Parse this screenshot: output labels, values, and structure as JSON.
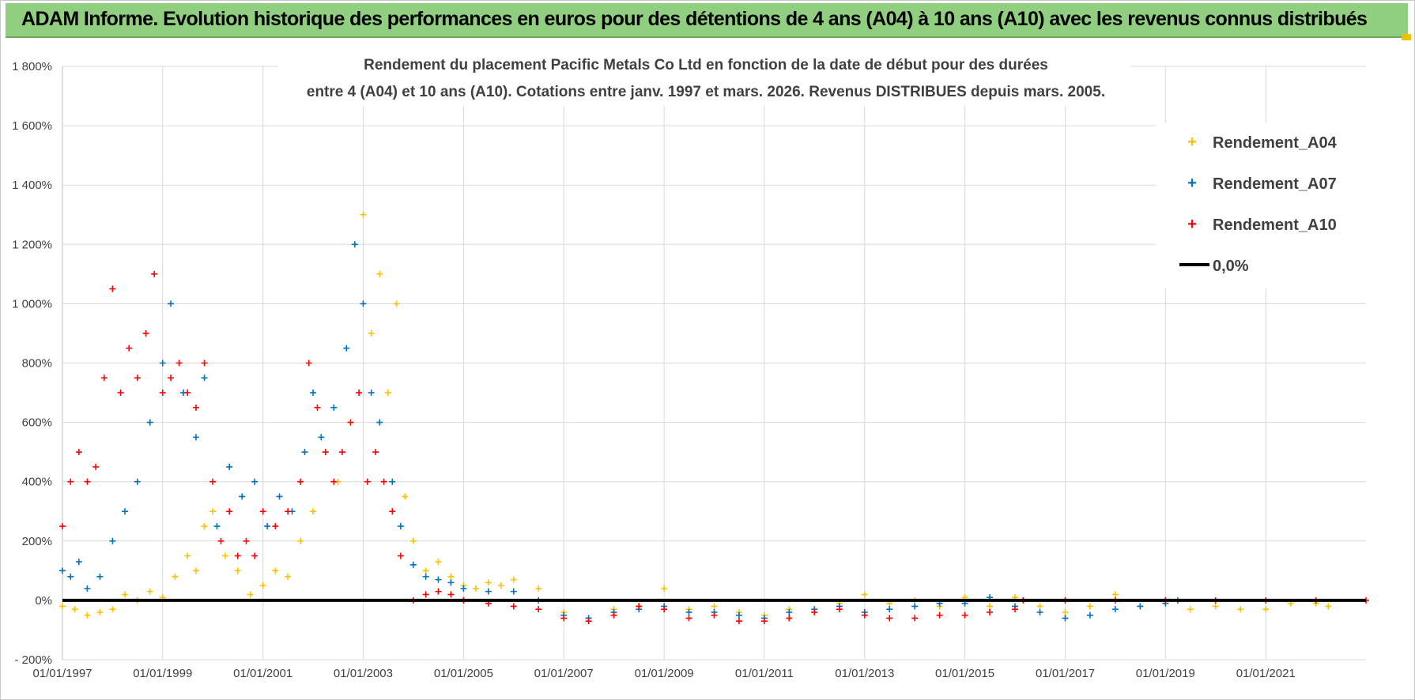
{
  "header": {
    "title": "ADAM Informe. Evolution historique des performances en euros pour des détentions de 4 ans (A04) à 10 ans (A10) avec les revenus connus distribués"
  },
  "colors": {
    "A04": "#ffc000",
    "A07": "#0070c0",
    "A10": "#ff0000",
    "zero": "#000000",
    "header_bg": "#8fcf7f",
    "grid": "#d9d9d9"
  },
  "chart_data": {
    "type": "scatter",
    "title_lines": [
      "Rendement du placement Pacific Metals Co Ltd en fonction de la date de début pour des durées",
      "entre 4 (A04) et 10 ans (A10).  Cotations entre janv. 1997 et mars. 2026. Revenus DISTRIBUES depuis mars. 2005."
    ],
    "xlabel": "",
    "ylabel": "",
    "ylim": [
      -200,
      1800
    ],
    "y_ticks": [
      -200,
      0,
      200,
      400,
      600,
      800,
      1000,
      1200,
      1400,
      1600,
      1800
    ],
    "y_tick_labels": [
      "- 200%",
      "0%",
      "200%",
      "400%",
      "600%",
      "800%",
      "1 000%",
      "1 200%",
      "1 400%",
      "1 600%",
      "1 800%"
    ],
    "x_range": [
      "1997-01-01",
      "2023-01-01"
    ],
    "x_ticks": [
      "1997-01-01",
      "1999-01-01",
      "2001-01-01",
      "2003-01-01",
      "2005-01-01",
      "2007-01-01",
      "2009-01-01",
      "2011-01-01",
      "2013-01-01",
      "2015-01-01",
      "2017-01-01",
      "2019-01-01",
      "2021-01-01"
    ],
    "x_tick_labels": [
      "01/01/1997",
      "01/01/1999",
      "01/01/2001",
      "01/01/2003",
      "01/01/2005",
      "01/01/2007",
      "01/01/2009",
      "01/01/2011",
      "01/01/2013",
      "01/01/2015",
      "01/01/2017",
      "01/01/2019",
      "01/01/2021"
    ],
    "grid": true,
    "legend_position": "top-right",
    "legend": [
      "Rendement_A04",
      "Rendement_A07",
      "Rendement_A10",
      "0,0%"
    ],
    "marker": "+",
    "series": [
      {
        "name": "Rendement_A04",
        "points": [
          [
            "1997-01-01",
            -20
          ],
          [
            "1997-04-01",
            -30
          ],
          [
            "1997-07-01",
            -50
          ],
          [
            "1997-10-01",
            -40
          ],
          [
            "1998-01-01",
            -30
          ],
          [
            "1998-04-01",
            20
          ],
          [
            "1998-07-01",
            0
          ],
          [
            "1998-10-01",
            30
          ],
          [
            "1999-01-01",
            10
          ],
          [
            "1999-04-01",
            80
          ],
          [
            "1999-07-01",
            150
          ],
          [
            "1999-09-01",
            100
          ],
          [
            "1999-11-01",
            250
          ],
          [
            "2000-01-01",
            300
          ],
          [
            "2000-04-01",
            150
          ],
          [
            "2000-07-01",
            100
          ],
          [
            "2000-10-01",
            20
          ],
          [
            "2001-01-01",
            50
          ],
          [
            "2001-04-01",
            100
          ],
          [
            "2001-07-01",
            80
          ],
          [
            "2001-10-01",
            200
          ],
          [
            "2002-01-01",
            300
          ],
          [
            "2002-04-01",
            500
          ],
          [
            "2002-07-01",
            400
          ],
          [
            "2002-10-01",
            600
          ],
          [
            "2003-01-01",
            1300
          ],
          [
            "2003-03-01",
            900
          ],
          [
            "2003-05-01",
            1100
          ],
          [
            "2003-07-01",
            700
          ],
          [
            "2003-09-01",
            1000
          ],
          [
            "2003-11-01",
            350
          ],
          [
            "2004-01-01",
            200
          ],
          [
            "2004-04-01",
            100
          ],
          [
            "2004-07-01",
            130
          ],
          [
            "2004-10-01",
            80
          ],
          [
            "2005-01-01",
            50
          ],
          [
            "2005-04-01",
            40
          ],
          [
            "2005-07-01",
            60
          ],
          [
            "2005-10-01",
            50
          ],
          [
            "2006-01-01",
            70
          ],
          [
            "2006-07-01",
            40
          ],
          [
            "2007-01-01",
            -40
          ],
          [
            "2007-07-01",
            -60
          ],
          [
            "2008-01-01",
            -30
          ],
          [
            "2008-07-01",
            -20
          ],
          [
            "2009-01-01",
            40
          ],
          [
            "2009-07-01",
            -30
          ],
          [
            "2010-01-01",
            -20
          ],
          [
            "2010-07-01",
            -40
          ],
          [
            "2011-01-01",
            -50
          ],
          [
            "2011-07-01",
            -30
          ],
          [
            "2012-01-01",
            -40
          ],
          [
            "2012-07-01",
            -10
          ],
          [
            "2013-01-01",
            20
          ],
          [
            "2013-07-01",
            -10
          ],
          [
            "2014-01-01",
            0
          ],
          [
            "2014-07-01",
            -20
          ],
          [
            "2015-01-01",
            10
          ],
          [
            "2015-07-01",
            -20
          ],
          [
            "2016-01-01",
            10
          ],
          [
            "2016-07-01",
            -20
          ],
          [
            "2017-01-01",
            -40
          ],
          [
            "2017-07-01",
            -20
          ],
          [
            "2018-01-01",
            20
          ],
          [
            "2018-07-01",
            -20
          ],
          [
            "2019-01-01",
            -10
          ],
          [
            "2019-07-01",
            -30
          ],
          [
            "2020-01-01",
            -20
          ],
          [
            "2020-07-01",
            -30
          ],
          [
            "2021-01-01",
            -30
          ],
          [
            "2021-07-01",
            -10
          ],
          [
            "2022-01-01",
            -10
          ],
          [
            "2022-04-01",
            -20
          ]
        ]
      },
      {
        "name": "Rendement_A07",
        "points": [
          [
            "1997-01-01",
            100
          ],
          [
            "1997-03-01",
            80
          ],
          [
            "1997-05-01",
            130
          ],
          [
            "1997-07-01",
            40
          ],
          [
            "1997-10-01",
            80
          ],
          [
            "1998-01-01",
            200
          ],
          [
            "1998-04-01",
            300
          ],
          [
            "1998-07-01",
            400
          ],
          [
            "1998-10-01",
            600
          ],
          [
            "1999-01-01",
            800
          ],
          [
            "1999-03-01",
            1000
          ],
          [
            "1999-06-01",
            700
          ],
          [
            "1999-09-01",
            550
          ],
          [
            "1999-11-01",
            750
          ],
          [
            "2000-02-01",
            250
          ],
          [
            "2000-05-01",
            450
          ],
          [
            "2000-08-01",
            350
          ],
          [
            "2000-11-01",
            400
          ],
          [
            "2001-02-01",
            250
          ],
          [
            "2001-05-01",
            350
          ],
          [
            "2001-08-01",
            300
          ],
          [
            "2001-11-01",
            500
          ],
          [
            "2002-01-01",
            700
          ],
          [
            "2002-03-01",
            550
          ],
          [
            "2002-06-01",
            650
          ],
          [
            "2002-09-01",
            850
          ],
          [
            "2002-11-01",
            1200
          ],
          [
            "2003-01-01",
            1000
          ],
          [
            "2003-03-01",
            700
          ],
          [
            "2003-05-01",
            600
          ],
          [
            "2003-08-01",
            400
          ],
          [
            "2003-10-01",
            250
          ],
          [
            "2004-01-01",
            120
          ],
          [
            "2004-04-01",
            80
          ],
          [
            "2004-07-01",
            70
          ],
          [
            "2004-10-01",
            60
          ],
          [
            "2005-01-01",
            40
          ],
          [
            "2005-07-01",
            30
          ],
          [
            "2006-01-01",
            30
          ],
          [
            "2006-07-01",
            0
          ],
          [
            "2007-01-01",
            -50
          ],
          [
            "2007-07-01",
            -60
          ],
          [
            "2008-01-01",
            -40
          ],
          [
            "2008-07-01",
            -30
          ],
          [
            "2009-01-01",
            -20
          ],
          [
            "2009-07-01",
            -40
          ],
          [
            "2010-01-01",
            -40
          ],
          [
            "2010-07-01",
            -50
          ],
          [
            "2011-01-01",
            -60
          ],
          [
            "2011-07-01",
            -40
          ],
          [
            "2012-01-01",
            -30
          ],
          [
            "2012-07-01",
            -20
          ],
          [
            "2013-01-01",
            -40
          ],
          [
            "2013-07-01",
            -30
          ],
          [
            "2014-01-01",
            -20
          ],
          [
            "2014-07-01",
            -10
          ],
          [
            "2015-01-01",
            -10
          ],
          [
            "2015-07-01",
            10
          ],
          [
            "2016-01-01",
            -20
          ],
          [
            "2016-07-01",
            -40
          ],
          [
            "2017-01-01",
            -60
          ],
          [
            "2017-07-01",
            -50
          ],
          [
            "2018-01-01",
            -30
          ],
          [
            "2018-07-01",
            -20
          ],
          [
            "2019-01-01",
            -10
          ],
          [
            "2019-04-01",
            0
          ]
        ]
      },
      {
        "name": "Rendement_A10",
        "points": [
          [
            "1997-01-01",
            250
          ],
          [
            "1997-03-01",
            400
          ],
          [
            "1997-05-01",
            500
          ],
          [
            "1997-07-01",
            400
          ],
          [
            "1997-09-01",
            450
          ],
          [
            "1997-11-01",
            750
          ],
          [
            "1998-01-01",
            1050
          ],
          [
            "1998-03-01",
            700
          ],
          [
            "1998-05-01",
            850
          ],
          [
            "1998-07-01",
            750
          ],
          [
            "1998-09-01",
            900
          ],
          [
            "1998-11-01",
            1100
          ],
          [
            "1999-01-01",
            700
          ],
          [
            "1999-03-01",
            750
          ],
          [
            "1999-05-01",
            800
          ],
          [
            "1999-07-01",
            700
          ],
          [
            "1999-09-01",
            650
          ],
          [
            "1999-11-01",
            800
          ],
          [
            "2000-01-01",
            400
          ],
          [
            "2000-03-01",
            200
          ],
          [
            "2000-05-01",
            300
          ],
          [
            "2000-07-01",
            150
          ],
          [
            "2000-09-01",
            200
          ],
          [
            "2000-11-01",
            150
          ],
          [
            "2001-01-01",
            300
          ],
          [
            "2001-04-01",
            250
          ],
          [
            "2001-07-01",
            300
          ],
          [
            "2001-10-01",
            400
          ],
          [
            "2001-12-01",
            800
          ],
          [
            "2002-02-01",
            650
          ],
          [
            "2002-04-01",
            500
          ],
          [
            "2002-06-01",
            400
          ],
          [
            "2002-08-01",
            500
          ],
          [
            "2002-10-01",
            600
          ],
          [
            "2002-12-01",
            700
          ],
          [
            "2003-02-01",
            400
          ],
          [
            "2003-04-01",
            500
          ],
          [
            "2003-06-01",
            400
          ],
          [
            "2003-08-01",
            300
          ],
          [
            "2003-10-01",
            150
          ],
          [
            "2004-01-01",
            0
          ],
          [
            "2004-04-01",
            20
          ],
          [
            "2004-07-01",
            30
          ],
          [
            "2004-10-01",
            20
          ],
          [
            "2005-01-01",
            0
          ],
          [
            "2005-07-01",
            -10
          ],
          [
            "2006-01-01",
            -20
          ],
          [
            "2006-07-01",
            -30
          ],
          [
            "2007-01-01",
            -60
          ],
          [
            "2007-07-01",
            -70
          ],
          [
            "2008-01-01",
            -50
          ],
          [
            "2008-07-01",
            -20
          ],
          [
            "2009-01-01",
            -30
          ],
          [
            "2009-07-01",
            -60
          ],
          [
            "2010-01-01",
            -50
          ],
          [
            "2010-07-01",
            -70
          ],
          [
            "2011-01-01",
            -70
          ],
          [
            "2011-07-01",
            -60
          ],
          [
            "2012-01-01",
            -40
          ],
          [
            "2012-07-01",
            -30
          ],
          [
            "2013-01-01",
            -50
          ],
          [
            "2013-07-01",
            -60
          ],
          [
            "2014-01-01",
            -60
          ],
          [
            "2014-07-01",
            -50
          ],
          [
            "2015-01-01",
            -50
          ],
          [
            "2015-07-01",
            -40
          ],
          [
            "2016-01-01",
            -30
          ],
          [
            "2016-03-01",
            0
          ],
          [
            "2017-01-01",
            0
          ],
          [
            "2018-01-01",
            0
          ],
          [
            "2019-01-01",
            0
          ],
          [
            "2020-01-01",
            0
          ],
          [
            "2021-01-01",
            0
          ],
          [
            "2022-01-01",
            0
          ],
          [
            "2023-01-01",
            0
          ]
        ]
      }
    ],
    "reference_line": {
      "name": "0,0%",
      "y": 0
    }
  }
}
